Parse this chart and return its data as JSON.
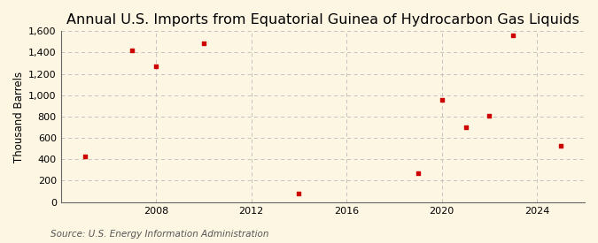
{
  "title": "Annual U.S. Imports from Equatorial Guinea of Hydrocarbon Gas Liquids",
  "ylabel": "Thousand Barrels",
  "source": "Source: U.S. Energy Information Administration",
  "background_color": "#fdf6e3",
  "marker_color": "#cc0000",
  "years": [
    2005,
    2007,
    2008,
    2010,
    2014,
    2019,
    2020,
    2021,
    2022,
    2023,
    2025
  ],
  "values": [
    430,
    1420,
    1270,
    1490,
    80,
    270,
    960,
    700,
    810,
    1560,
    530
  ],
  "xlim": [
    2004,
    2026
  ],
  "ylim": [
    0,
    1600
  ],
  "yticks": [
    0,
    200,
    400,
    600,
    800,
    1000,
    1200,
    1400,
    1600
  ],
  "xticks": [
    2008,
    2012,
    2016,
    2020,
    2024
  ],
  "xtick_labels": [
    "2008",
    "2012",
    "2016",
    "2020",
    "2024"
  ],
  "grid_color": "#bbbbbb",
  "title_fontsize": 11.5,
  "label_fontsize": 8.5,
  "tick_fontsize": 8,
  "source_fontsize": 7.5
}
